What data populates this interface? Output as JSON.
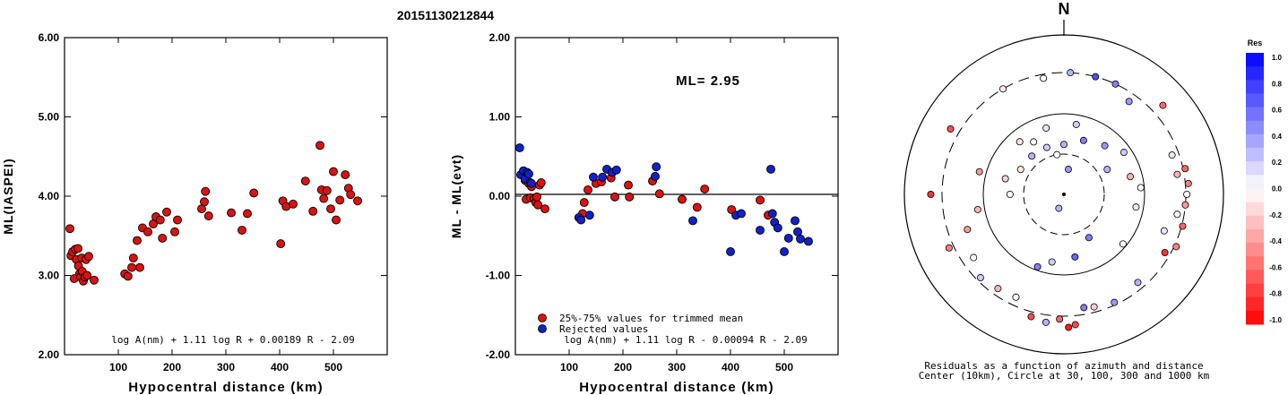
{
  "title": "20151130212844",
  "chart_data": [
    {
      "type": "scatter",
      "xlabel": "Hypocentral distance (km)",
      "ylabel": "ML(IASPEI)",
      "xlim": [
        0,
        600
      ],
      "ylim": [
        2.0,
        6.0
      ],
      "xticks": [
        "100",
        "200",
        "300",
        "400",
        "500"
      ],
      "yticks": [
        "2.00",
        "3.00",
        "4.00",
        "5.00",
        "6.00"
      ],
      "formula": "log A(nm) + 1.11 log R + 0.00189 R - 2.09",
      "marker_color": "#dd1111",
      "points": [
        [
          10,
          3.59
        ],
        [
          12,
          3.25
        ],
        [
          15,
          3.3
        ],
        [
          18,
          2.96
        ],
        [
          20,
          3.33
        ],
        [
          22,
          3.2
        ],
        [
          25,
          3.34
        ],
        [
          26,
          3.12
        ],
        [
          28,
          3.02
        ],
        [
          30,
          2.98
        ],
        [
          32,
          3.22
        ],
        [
          33,
          3.05
        ],
        [
          35,
          2.93
        ],
        [
          38,
          2.98
        ],
        [
          40,
          3.2
        ],
        [
          42,
          3.0
        ],
        [
          45,
          3.24
        ],
        [
          55,
          2.94
        ],
        [
          112,
          3.02
        ],
        [
          118,
          2.99
        ],
        [
          125,
          3.1
        ],
        [
          128,
          3.22
        ],
        [
          135,
          3.44
        ],
        [
          140,
          3.1
        ],
        [
          145,
          3.6
        ],
        [
          155,
          3.55
        ],
        [
          165,
          3.65
        ],
        [
          170,
          3.74
        ],
        [
          178,
          3.7
        ],
        [
          182,
          3.47
        ],
        [
          190,
          3.8
        ],
        [
          205,
          3.55
        ],
        [
          210,
          3.7
        ],
        [
          255,
          3.84
        ],
        [
          260,
          3.93
        ],
        [
          262,
          4.06
        ],
        [
          268,
          3.75
        ],
        [
          310,
          3.79
        ],
        [
          330,
          3.57
        ],
        [
          340,
          3.78
        ],
        [
          352,
          4.04
        ],
        [
          402,
          3.4
        ],
        [
          406,
          3.94
        ],
        [
          412,
          3.87
        ],
        [
          425,
          3.9
        ],
        [
          448,
          4.19
        ],
        [
          462,
          3.81
        ],
        [
          475,
          4.64
        ],
        [
          478,
          4.08
        ],
        [
          482,
          3.97
        ],
        [
          488,
          4.07
        ],
        [
          495,
          3.84
        ],
        [
          500,
          4.31
        ],
        [
          505,
          3.7
        ],
        [
          512,
          3.95
        ],
        [
          522,
          4.27
        ],
        [
          528,
          4.1
        ],
        [
          532,
          4.02
        ],
        [
          545,
          3.94
        ]
      ]
    },
    {
      "type": "scatter",
      "xlabel": "Hypocentral distance (km)",
      "ylabel": "ML - ML(evt)",
      "xlim": [
        0,
        600
      ],
      "ylim": [
        -2.0,
        2.0
      ],
      "xticks": [
        "100",
        "200",
        "300",
        "400",
        "500"
      ],
      "yticks": [
        "-2.00",
        "-1.00",
        "0.00",
        "1.00",
        "2.00"
      ],
      "annotation": "ML= 2.95",
      "formula": "log A(nm) + 1.11 log R - 0.00094 R - 2.09",
      "reference_line": 0.0,
      "legend": [
        {
          "label": "25%-75% values for trimmed mean",
          "color": "#dd1111"
        },
        {
          "label": "Rejected values",
          "color": "#1122cc"
        }
      ],
      "series": [
        {
          "name": "25%-75% values for trimmed mean",
          "color": "#dd1111",
          "points": [
            [
              18,
              0.2
            ],
            [
              20,
              -0.04
            ],
            [
              25,
              0.16
            ],
            [
              28,
              -0.02
            ],
            [
              30,
              0.12
            ],
            [
              35,
              -0.03
            ],
            [
              38,
              -0.08
            ],
            [
              40,
              -0.01
            ],
            [
              42,
              -0.11
            ],
            [
              45,
              0.14
            ],
            [
              48,
              0.17
            ],
            [
              55,
              -0.16
            ],
            [
              125,
              -0.22
            ],
            [
              128,
              -0.08
            ],
            [
              135,
              0.08
            ],
            [
              150,
              0.16
            ],
            [
              160,
              0.18
            ],
            [
              178,
              0.23
            ],
            [
              185,
              -0.01
            ],
            [
              210,
              0.14
            ],
            [
              212,
              -0.01
            ],
            [
              255,
              0.19
            ],
            [
              268,
              0.03
            ],
            [
              310,
              -0.04
            ],
            [
              338,
              -0.14
            ],
            [
              352,
              0.09
            ],
            [
              402,
              -0.17
            ],
            [
              455,
              -0.05
            ],
            [
              470,
              -0.24
            ]
          ]
        },
        {
          "name": "Rejected values",
          "color": "#1122cc",
          "points": [
            [
              8,
              0.61
            ],
            [
              10,
              0.27
            ],
            [
              15,
              0.32
            ],
            [
              18,
              0.22
            ],
            [
              22,
              0.3
            ],
            [
              25,
              0.28
            ],
            [
              28,
              0.17
            ],
            [
              30,
              0.16
            ],
            [
              118,
              -0.27
            ],
            [
              122,
              -0.3
            ],
            [
              138,
              -0.24
            ],
            [
              145,
              0.24
            ],
            [
              162,
              0.24
            ],
            [
              170,
              0.34
            ],
            [
              180,
              0.3
            ],
            [
              188,
              0.33
            ],
            [
              260,
              0.25
            ],
            [
              262,
              0.37
            ],
            [
              330,
              -0.31
            ],
            [
              400,
              -0.7
            ],
            [
              410,
              -0.24
            ],
            [
              420,
              -0.22
            ],
            [
              455,
              -0.43
            ],
            [
              475,
              0.34
            ],
            [
              478,
              -0.22
            ],
            [
              482,
              -0.33
            ],
            [
              488,
              -0.4
            ],
            [
              500,
              -0.7
            ],
            [
              508,
              -0.53
            ],
            [
              520,
              -0.31
            ],
            [
              525,
              -0.45
            ],
            [
              530,
              -0.54
            ],
            [
              545,
              -0.57
            ]
          ]
        }
      ]
    },
    {
      "type": "scatter",
      "subtype": "polar",
      "north_label": "N",
      "caption_line1": "Residuals as a function of azimuth and distance",
      "caption_line2": "Center (10km), Circle at 30, 100, 300 and 1000 km",
      "circles_km": [
        30,
        100,
        300,
        1000
      ],
      "colorbar": {
        "title": "Res",
        "labels": [
          "1.0",
          "0.8",
          "0.6",
          "0.4",
          "0.2",
          "0.0",
          "-0.2",
          "-0.4",
          "-0.6",
          "-0.8",
          "-1.0"
        ],
        "range": [
          -1.0,
          1.0
        ]
      },
      "stations": [
        [
          3,
          300,
          0.3
        ],
        [
          15,
          300,
          0.7
        ],
        [
          350,
          270,
          0.0
        ],
        [
          330,
          300,
          -0.1
        ],
        [
          300,
          400,
          -0.7
        ],
        [
          25,
          300,
          0.5
        ],
        [
          35,
          240,
          0.4
        ],
        [
          48,
          430,
          -0.6
        ],
        [
          55,
          80,
          0.2
        ],
        [
          40,
          60,
          0.4
        ],
        [
          20,
          50,
          0.5
        ],
        [
          345,
          70,
          0.1
        ],
        [
          330,
          55,
          0.0
        ],
        [
          300,
          40,
          -0.1
        ],
        [
          285,
          55,
          -0.2
        ],
        [
          270,
          45,
          0.0
        ],
        [
          320,
          70,
          -0.1
        ],
        [
          340,
          40,
          0.2
        ],
        [
          0,
          40,
          0.3
        ],
        [
          10,
          75,
          0.2
        ],
        [
          60,
          40,
          0.3
        ],
        [
          80,
          250,
          -0.3
        ],
        [
          85,
          330,
          -0.5
        ],
        [
          95,
          300,
          -0.4
        ],
        [
          100,
          250,
          0.0
        ],
        [
          105,
          310,
          -0.6
        ],
        [
          110,
          200,
          0.1
        ],
        [
          115,
          320,
          -0.5
        ],
        [
          120,
          260,
          -0.8
        ],
        [
          78,
          320,
          -0.6
        ],
        [
          70,
          250,
          0.1
        ],
        [
          90,
          310,
          0.0
        ],
        [
          140,
          250,
          0.3
        ],
        [
          155,
          280,
          0.4
        ],
        [
          165,
          260,
          -0.2
        ],
        [
          170,
          250,
          0.5
        ],
        [
          175,
          400,
          -0.7
        ],
        [
          178,
          430,
          -0.9
        ],
        [
          182,
          330,
          -0.6
        ],
        [
          188,
          380,
          0.3
        ],
        [
          195,
          350,
          -0.7
        ],
        [
          205,
          240,
          0.0
        ],
        [
          215,
          250,
          -0.3
        ],
        [
          225,
          270,
          0.2
        ],
        [
          235,
          220,
          0.0
        ],
        [
          245,
          350,
          -0.5
        ],
        [
          250,
          180,
          -0.4
        ],
        [
          260,
          120,
          -0.3
        ],
        [
          270,
          430,
          -0.8
        ],
        [
          200,
          90,
          0.5
        ],
        [
          190,
          70,
          0.2
        ],
        [
          170,
          60,
          0.6
        ],
        [
          150,
          40,
          0.5
        ],
        [
          130,
          90,
          0.0
        ],
        [
          100,
          80,
          0.1
        ],
        [
          85,
          90,
          0.0
        ],
        [
          75,
          70,
          -0.3
        ],
        [
          285,
          120,
          -0.4
        ],
        [
          320,
          40,
          0.3
        ],
        [
          350,
          30,
          0.0
        ],
        [
          10,
          20,
          0.4
        ],
        [
          200,
          15,
          0.3
        ]
      ]
    }
  ]
}
